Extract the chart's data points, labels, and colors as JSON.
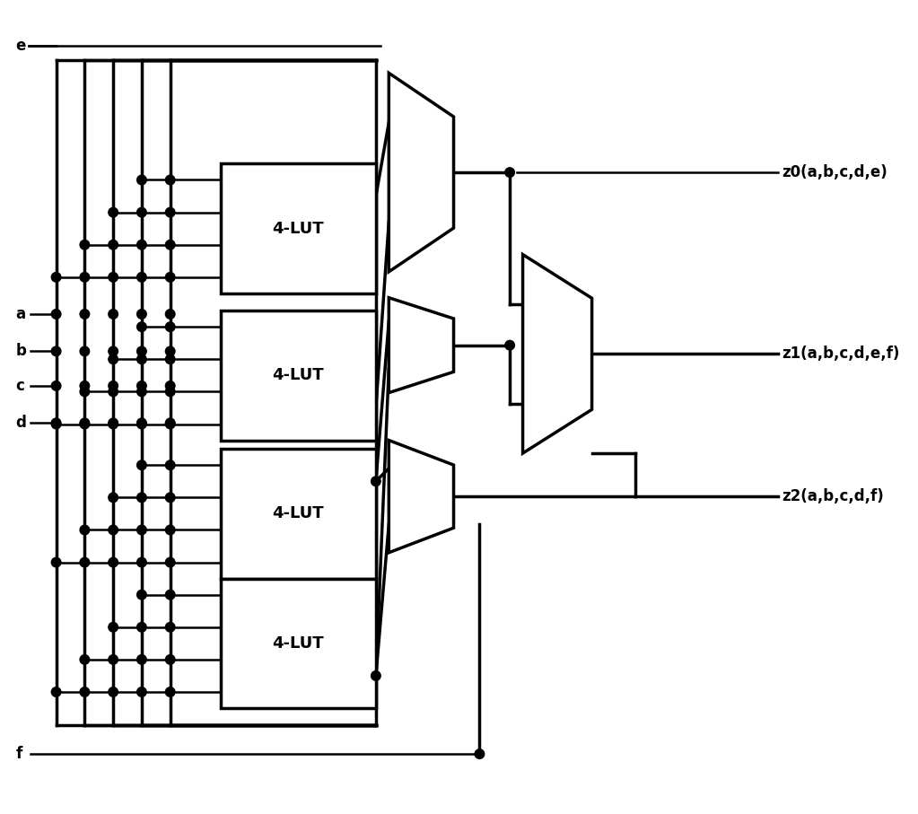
{
  "bg_color": "#ffffff",
  "lw": 2.5,
  "lw_thin": 1.8,
  "dot_r": 0.055,
  "lut_labels": [
    "4-LUT",
    "4-LUT",
    "4-LUT",
    "4-LUT"
  ],
  "output_labels": [
    "z0(a,b,c,d,e)",
    "z1(a,b,c,d,e,f)",
    "z2(a,b,c,d,f)"
  ],
  "input_labels": [
    "e",
    "a",
    "b",
    "c",
    "d",
    "f"
  ],
  "font_size": 12,
  "figw": 10.23,
  "figh": 9.07
}
